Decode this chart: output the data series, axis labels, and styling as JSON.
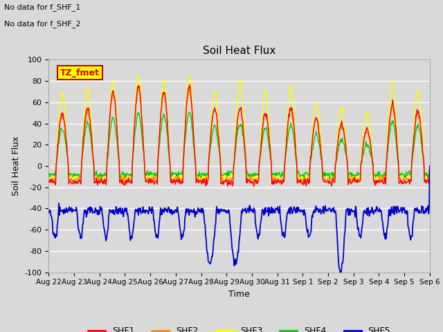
{
  "title": "Soil Heat Flux",
  "ylabel": "Soil Heat Flux",
  "xlabel": "Time",
  "annotation_lines": [
    "No data for f_SHF_1",
    "No data for f_SHF_2"
  ],
  "tz_label": "TZ_fmet",
  "tz_box_color": "#ffff00",
  "tz_box_edge": "#cc0000",
  "ylim": [
    -100,
    100
  ],
  "yticks": [
    -100,
    -80,
    -60,
    -40,
    -20,
    0,
    20,
    40,
    60,
    80,
    100
  ],
  "series_colors": [
    "#ff0000",
    "#ff8800",
    "#ffff00",
    "#00cc00",
    "#0000cc"
  ],
  "series_names": [
    "SHF1",
    "SHF2",
    "SHF3",
    "SHF4",
    "SHF5"
  ],
  "legend_colors": [
    "#ff0000",
    "#ff8800",
    "#ffff00",
    "#00cc00",
    "#0000cc"
  ],
  "background_color": "#d9d9d9",
  "plot_bg_color": "#d9d9d9",
  "grid_color": "#ffffff",
  "tick_labels": [
    "Aug 22",
    "Aug 23",
    "Aug 24",
    "Aug 25",
    "Aug 26",
    "Aug 27",
    "Aug 28",
    "Aug 29",
    "Aug 30",
    "Aug 31",
    "Sep 1",
    "Sep 2",
    "Sep 3",
    "Sep 4",
    "Sep 5",
    "Sep 6"
  ]
}
